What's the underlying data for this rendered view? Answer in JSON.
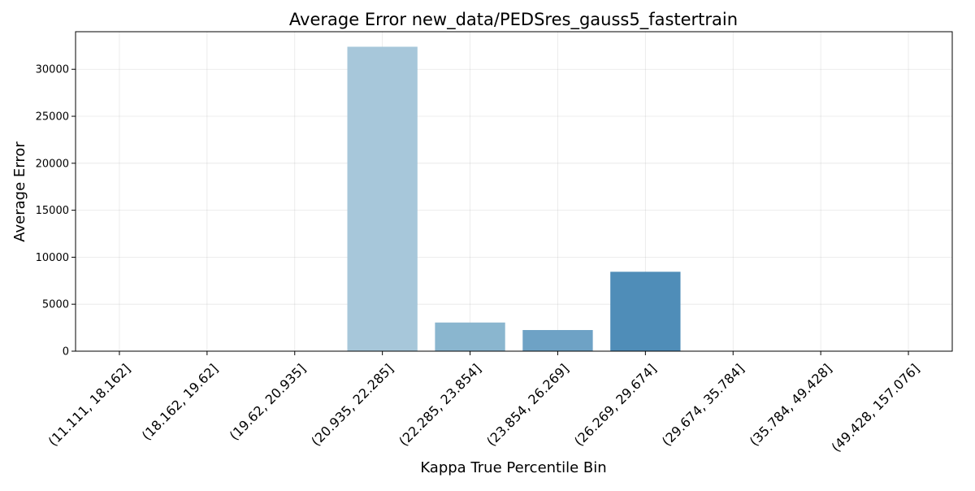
{
  "chart_data": {
    "type": "bar",
    "title": "Average Error new_data/PEDSres_gauss5_fastertrain",
    "xlabel": "Kappa True Percentile Bin",
    "ylabel": "Average Error",
    "categories": [
      "(11.111, 18.162]",
      "(18.162, 19.62]",
      "(19.62, 20.935]",
      "(20.935, 22.285]",
      "(22.285, 23.854]",
      "(23.854, 26.269]",
      "(26.269, 29.674]",
      "(29.674, 35.784]",
      "(35.784, 49.428]",
      "(49.428, 157.076]"
    ],
    "values": [
      0,
      0,
      0,
      32400,
      3050,
      2250,
      8450,
      0,
      0,
      0
    ],
    "bar_colors": [
      "#cfe1ed",
      "#c3d9e9",
      "#b6d1e3",
      "#a7c7da",
      "#8ab6cf",
      "#6ea2c5",
      "#4f8db8",
      "#3d7fb0",
      "#2e6ea6",
      "#215d97"
    ],
    "ylim": [
      0,
      34000
    ],
    "yticks": [
      0,
      5000,
      10000,
      15000,
      20000,
      25000,
      30000
    ],
    "grid": true,
    "legend": "none"
  }
}
